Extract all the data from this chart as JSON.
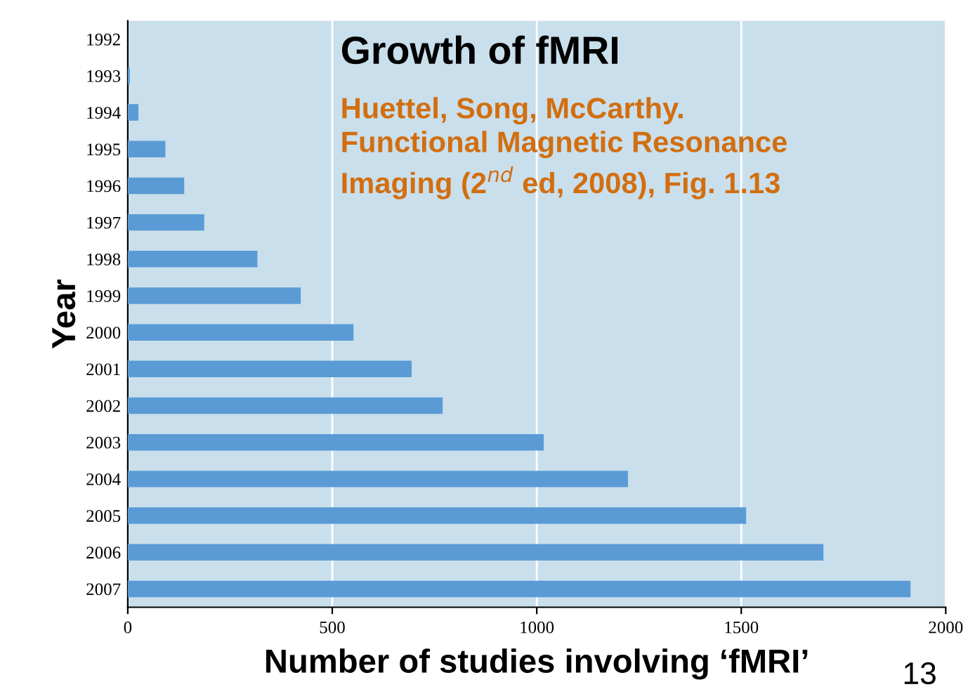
{
  "chart_data": {
    "type": "bar",
    "orientation": "horizontal",
    "title": "Growth of fMRI",
    "subtitle": "Huettel, Song, McCarthy.\nFunctional Magnetic Resonance\nImaging (2$^{nd}$ ed, 2008), Fig. 1.13",
    "xlabel": "Number of studies involving ‘fMRI’",
    "ylabel": "Year",
    "categories": [
      "1992",
      "1993",
      "1994",
      "1995",
      "1996",
      "1997",
      "1998",
      "1999",
      "2000",
      "2001",
      "2002",
      "2003",
      "2004",
      "2005",
      "2006",
      "2007"
    ],
    "values": [
      0,
      5,
      26,
      92,
      138,
      187,
      317,
      423,
      552,
      694,
      770,
      1017,
      1223,
      1512,
      1701,
      1914
    ],
    "color": "#5b9bd5",
    "xlim": [
      0,
      2000
    ],
    "xticks": [
      0,
      500,
      1000,
      1500,
      2000
    ],
    "grid": "x",
    "annotations": [
      "13"
    ]
  }
}
